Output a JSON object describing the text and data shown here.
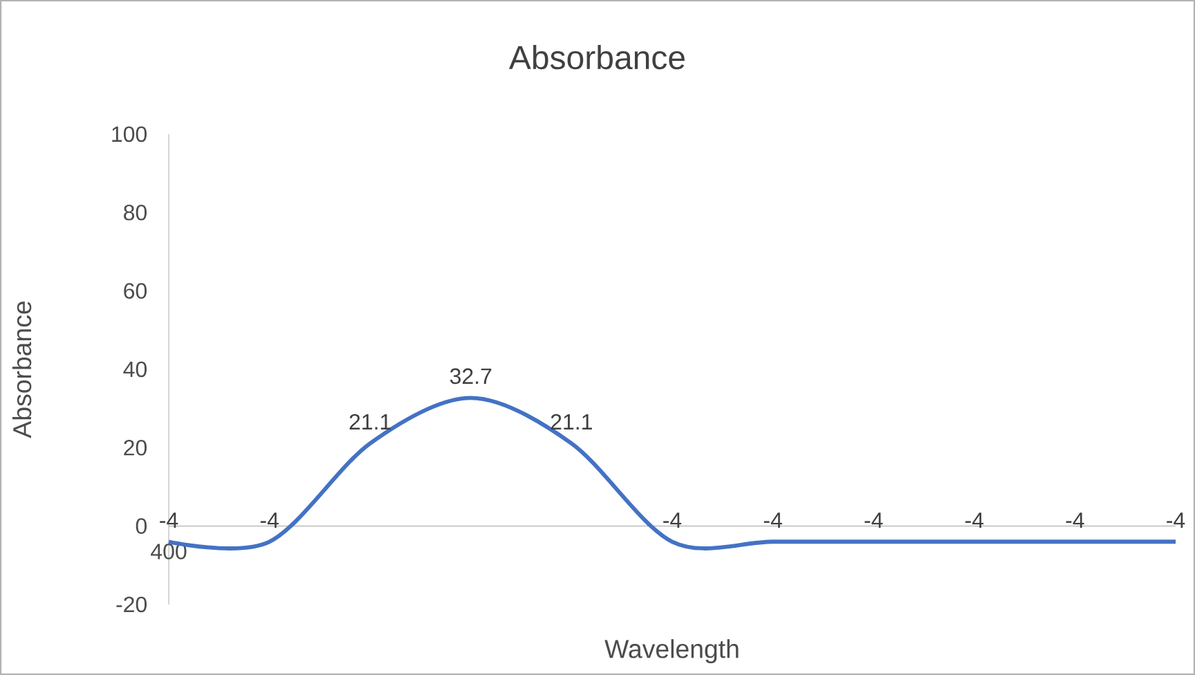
{
  "chart_data": {
    "type": "line",
    "title": "Absorbance",
    "xlabel": "Wavelength",
    "ylabel": "Absorbance",
    "categories": [
      "400",
      null,
      null,
      null,
      null,
      null,
      null,
      null,
      null,
      null,
      null
    ],
    "series": [
      {
        "color": "#4472c4",
        "values": [
          -4,
          -4,
          21.1,
          32.7,
          21.1,
          -4,
          -4,
          -4,
          -4,
          -4,
          -4
        ]
      }
    ],
    "ylim": [
      -20,
      100
    ],
    "yticks": [
      -20,
      0,
      20,
      40,
      60,
      80,
      100
    ],
    "data_labels": true,
    "marker": "none",
    "line_style": "solid"
  }
}
